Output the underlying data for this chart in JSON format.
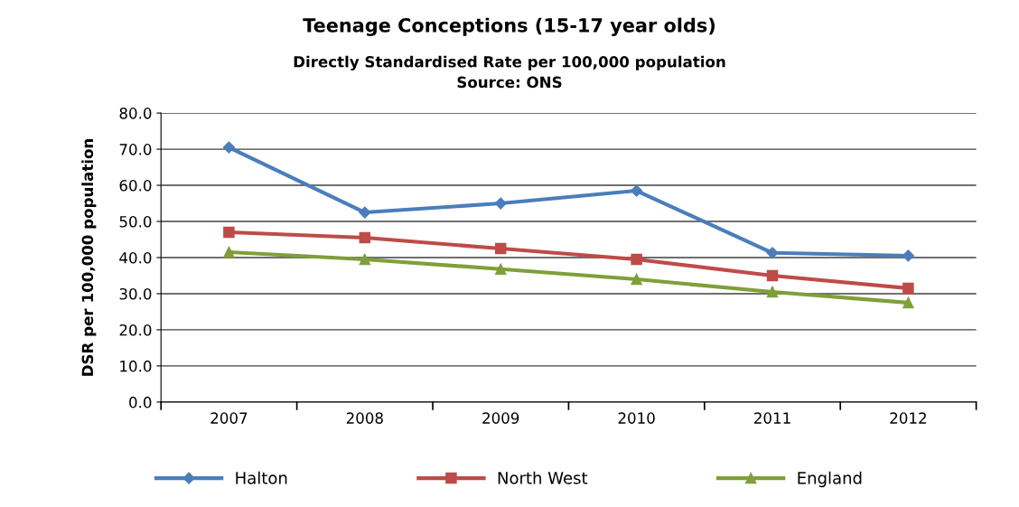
{
  "chart_data": {
    "type": "line",
    "title": "Teenage Conceptions (15-17 year olds)",
    "subtitle": "Directly Standardised Rate per 100,000 population\nSource: ONS",
    "ylabel": "DSR per 100,000 population",
    "categories": [
      "2007",
      "2008",
      "2009",
      "2010",
      "2011",
      "2012"
    ],
    "series": [
      {
        "name": "Halton",
        "color": "#4a7ebb",
        "marker": "diamond",
        "values": [
          70.5,
          52.5,
          55.0,
          58.5,
          41.3,
          40.5
        ]
      },
      {
        "name": "North West",
        "color": "#be4b48",
        "marker": "square",
        "values": [
          47.0,
          45.5,
          42.5,
          39.5,
          35.0,
          31.5
        ]
      },
      {
        "name": "England",
        "color": "#7f9f3a",
        "marker": "triangle",
        "values": [
          41.5,
          39.5,
          36.8,
          34.0,
          30.5,
          27.5
        ]
      }
    ],
    "ylim": [
      0,
      80
    ],
    "yticks": [
      {
        "value": 0,
        "label": "0.0"
      },
      {
        "value": 10,
        "label": "10.0"
      },
      {
        "value": 20,
        "label": "20.0"
      },
      {
        "value": 30,
        "label": "30.0"
      },
      {
        "value": 40,
        "label": "40.0"
      },
      {
        "value": 50,
        "label": "50.0"
      },
      {
        "value": 60,
        "label": "60.0"
      },
      {
        "value": 70,
        "label": "70.0"
      },
      {
        "value": 80,
        "label": "80.0"
      }
    ],
    "grid": "y",
    "legend": "bottom"
  }
}
